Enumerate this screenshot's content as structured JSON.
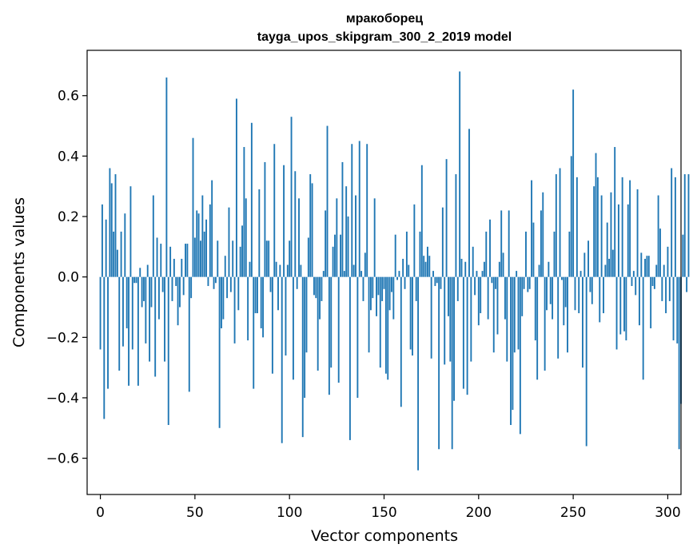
{
  "chart_data": {
    "type": "bar",
    "title": "мракоборец",
    "subtitle": "tayga_upos_skipgram_300_2_2019 model",
    "xlabel": "Vector components",
    "ylabel": "Components values",
    "xlim": [
      -7,
      307
    ],
    "ylim": [
      -0.72,
      0.75
    ],
    "xticks": [
      0,
      50,
      100,
      150,
      200,
      250,
      300
    ],
    "yticks": [
      -0.6,
      -0.4,
      -0.2,
      0.0,
      0.2,
      0.4,
      0.6
    ],
    "ytick_labels": [
      "−0.6",
      "−0.4",
      "−0.2",
      "0.0",
      "0.2",
      "0.4",
      "0.6"
    ],
    "grid": false,
    "bar_color": "#1f77b4",
    "values": [
      -0.24,
      0.24,
      -0.47,
      0.19,
      -0.37,
      0.36,
      0.31,
      0.15,
      0.34,
      0.09,
      -0.31,
      0.15,
      -0.23,
      0.21,
      -0.17,
      -0.36,
      0.3,
      -0.24,
      -0.02,
      -0.02,
      -0.36,
      0.03,
      -0.1,
      -0.08,
      -0.22,
      0.04,
      -0.28,
      -0.1,
      0.27,
      -0.33,
      0.13,
      -0.14,
      0.11,
      -0.05,
      -0.28,
      0.66,
      -0.49,
      0.1,
      -0.08,
      0.06,
      -0.03,
      -0.16,
      -0.1,
      0.06,
      -0.06,
      0.11,
      0.11,
      -0.38,
      -0.07,
      0.46,
      0.13,
      0.22,
      0.21,
      0.12,
      0.27,
      0.15,
      0.19,
      -0.03,
      0.24,
      0.32,
      -0.04,
      -0.02,
      0.12,
      -0.5,
      -0.17,
      -0.14,
      0.07,
      -0.07,
      0.23,
      -0.05,
      0.12,
      -0.22,
      0.59,
      -0.11,
      0.1,
      0.17,
      0.43,
      0.26,
      -0.21,
      0.05,
      0.51,
      -0.37,
      -0.12,
      -0.12,
      0.29,
      -0.17,
      -0.2,
      0.38,
      0.12,
      0.12,
      -0.05,
      -0.32,
      0.44,
      0.05,
      -0.11,
      0.04,
      -0.55,
      0.37,
      -0.26,
      0.04,
      0.12,
      0.53,
      -0.34,
      0.35,
      -0.04,
      0.26,
      0.04,
      -0.53,
      -0.4,
      -0.25,
      0.13,
      0.34,
      0.31,
      -0.06,
      -0.07,
      -0.31,
      -0.14,
      -0.08,
      0.02,
      0.22,
      0.5,
      -0.39,
      -0.3,
      0.1,
      0.14,
      0.26,
      -0.35,
      0.14,
      0.38,
      0.02,
      0.3,
      0.2,
      -0.54,
      0.44,
      0.04,
      0.27,
      -0.4,
      0.45,
      0.02,
      -0.08,
      0.08,
      0.44,
      -0.25,
      -0.11,
      -0.07,
      0.26,
      -0.13,
      -0.06,
      -0.3,
      -0.08,
      -0.04,
      -0.32,
      -0.34,
      -0.11,
      -0.05,
      -0.14,
      0.14,
      -0.01,
      0.02,
      -0.43,
      0.06,
      -0.04,
      0.15,
      0.04,
      -0.24,
      -0.26,
      0.24,
      -0.08,
      -0.64,
      0.15,
      0.37,
      0.07,
      0.05,
      0.1,
      0.07,
      -0.27,
      0.02,
      -0.03,
      -0.02,
      -0.57,
      -0.04,
      0.23,
      -0.29,
      0.39,
      -0.13,
      -0.28,
      -0.57,
      -0.41,
      0.34,
      -0.08,
      0.68,
      0.06,
      -0.37,
      0.05,
      -0.39,
      0.49,
      -0.28,
      0.1,
      -0.06,
      0.02,
      -0.16,
      -0.12,
      0.02,
      0.05,
      0.15,
      -0.14,
      0.19,
      -0.02,
      -0.25,
      -0.04,
      -0.19,
      0.05,
      0.22,
      0.08,
      -0.14,
      -0.28,
      0.22,
      -0.49,
      -0.44,
      -0.25,
      0.02,
      -0.24,
      -0.52,
      -0.13,
      -0.04,
      0.15,
      -0.05,
      -0.04,
      0.32,
      0.18,
      -0.21,
      -0.34,
      0.04,
      0.22,
      0.28,
      -0.31,
      -0.11,
      0.05,
      -0.09,
      -0.14,
      0.15,
      0.34,
      -0.27,
      0.36,
      -0.01,
      -0.16,
      -0.1,
      -0.25,
      0.15,
      0.4,
      0.62,
      -0.11,
      0.33,
      -0.12,
      0.02,
      -0.3,
      0.08,
      -0.56,
      0.12,
      -0.05,
      -0.09,
      0.3,
      0.41,
      0.33,
      -0.15,
      0.27,
      -0.12,
      0.04,
      0.18,
      0.06,
      0.28,
      0.09,
      0.43,
      -0.24,
      0.24,
      -0.19,
      0.33,
      -0.18,
      -0.21,
      0.24,
      0.32,
      -0.03,
      0.02,
      -0.06,
      0.29,
      -0.16,
      0.08,
      -0.34,
      0.06,
      0.07,
      0.07,
      -0.17,
      -0.03,
      -0.04,
      0.04,
      0.27,
      0.16,
      -0.08,
      0.04,
      -0.12,
      0.1,
      -0.08,
      0.36,
      -0.21,
      0.33,
      -0.22,
      -0.57,
      -0.42,
      0.14,
      0.34,
      -0.05,
      0.34
    ]
  }
}
